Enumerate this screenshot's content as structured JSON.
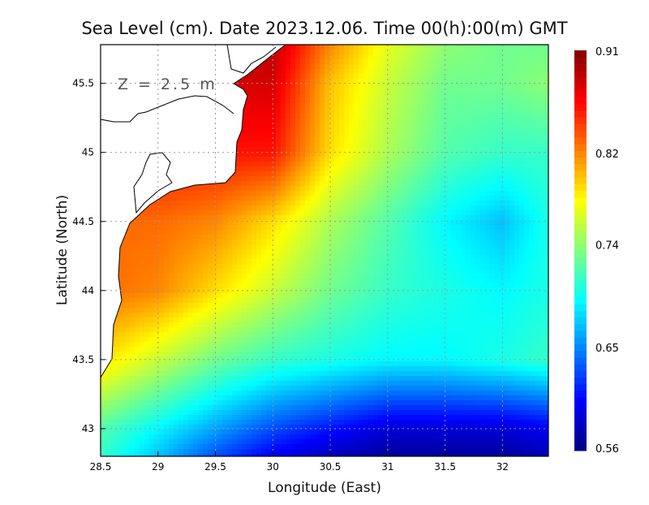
{
  "chart_data": {
    "type": "heatmap",
    "title": "Sea Level (cm). Date 2023.12.06. Time 00(h):00(m) GMT",
    "annotation": "Z = 2.5 m",
    "xlabel": "Longitude (East)",
    "ylabel": "Latitude (North)",
    "xlim": [
      28.5,
      32.4
    ],
    "ylim": [
      42.8,
      45.78
    ],
    "xticks": [
      "28.5",
      "29",
      "29.5",
      "30",
      "30.5",
      "31",
      "31.5",
      "32"
    ],
    "yticks": [
      "43",
      "43.5",
      "44",
      "44.5",
      "45",
      "45.5"
    ],
    "grid": true,
    "colorbar": {
      "range": [
        0.56,
        0.91
      ],
      "ticks": [
        "0.91",
        "0.82",
        "0.74",
        "0.65",
        "0.56"
      ],
      "colormap": "jet",
      "placement": "right"
    },
    "lon": [
      28.5,
      29,
      29.5,
      30,
      30.5,
      31,
      31.5,
      32,
      32.4
    ],
    "lat": [
      45.78,
      45.5,
      45,
      44.5,
      44,
      43.5,
      43,
      42.8
    ],
    "values": [
      [
        0.9,
        0.9,
        0.9,
        0.89,
        0.82,
        0.77,
        0.74,
        0.73,
        0.73
      ],
      [
        0.88,
        0.88,
        0.88,
        0.88,
        0.8,
        0.76,
        0.73,
        0.73,
        0.74
      ],
      [
        0.86,
        0.86,
        0.86,
        0.86,
        0.79,
        0.75,
        0.72,
        0.71,
        0.71
      ],
      [
        0.83,
        0.83,
        0.82,
        0.79,
        0.75,
        0.72,
        0.69,
        0.67,
        0.7
      ],
      [
        0.83,
        0.82,
        0.79,
        0.76,
        0.73,
        0.71,
        0.7,
        0.69,
        0.7
      ],
      [
        0.79,
        0.76,
        0.73,
        0.71,
        0.7,
        0.69,
        0.69,
        0.7,
        0.71
      ],
      [
        0.72,
        0.69,
        0.66,
        0.63,
        0.61,
        0.59,
        0.59,
        0.59,
        0.6
      ],
      [
        0.71,
        0.67,
        0.63,
        0.6,
        0.58,
        0.57,
        0.57,
        0.57,
        0.58
      ]
    ],
    "land_color": "#ffffff"
  }
}
